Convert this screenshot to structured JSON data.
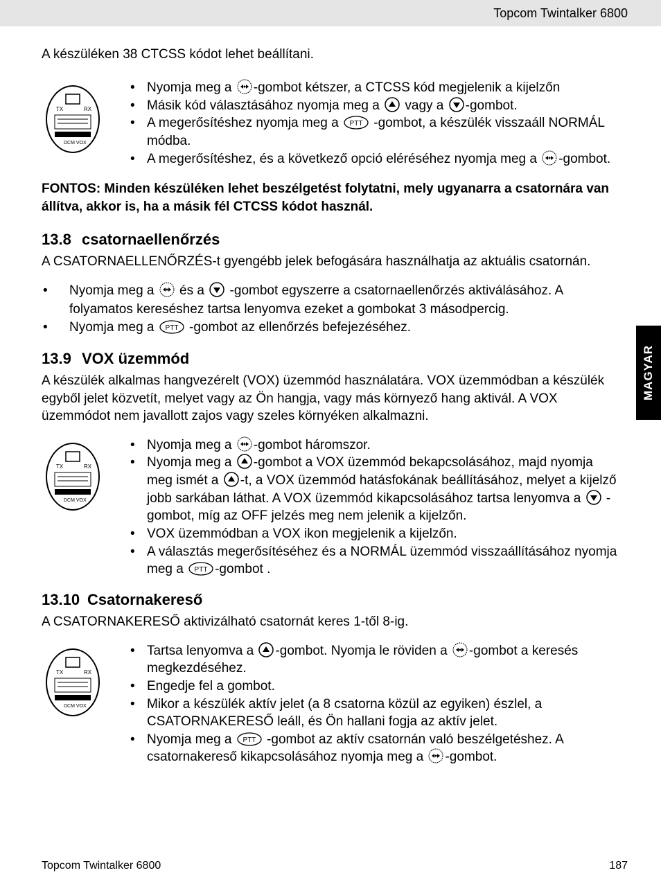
{
  "header": {
    "product_name": "Topcom Twintalker 6800"
  },
  "side_tab": {
    "language": "MAGYAR"
  },
  "intro": "A készüléken 38 CTCSS kódot lehet beállítani.",
  "ctcss_bullets": [
    "Nyomja meg a {MENU}-gombot kétszer, a CTCSS kód megjelenik a kijelzőn",
    "Másik kód választásához nyomja meg a {UP} vagy a {DOWN}-gombot.",
    "A megerősítéshez nyomja meg a {PTT} -gombot, a készülék visszaáll NORMÁL módba.",
    "A megerősítéshez, és a következő opció eléréséhez nyomja meg a {MENU}-gombot."
  ],
  "important": "FONTOS: Minden készüléken lehet beszélgetést folytatni, mely ugyanarra a csatornára van állítva, akkor is, ha a másik fél CTCSS kódot használ.",
  "s138": {
    "num": "13.8",
    "title": "csatornaellenőrzés",
    "para": "A CSATORNAELLENŐRZÉS-t gyengébb jelek befogására használhatja az aktuális csatornán.",
    "bullets": [
      "Nyomja meg a {MENU} és a {DOWN} -gombot egyszerre a csatornaellenőrzés aktiválásához. A folyamatos kereséshez tartsa lenyomva ezeket a gombokat 3 másodpercig.",
      "Nyomja meg a {PTT} -gombot az ellenőrzés befejezéséhez."
    ]
  },
  "s139": {
    "num": "13.9",
    "title": "VOX üzemmód",
    "para": "A készülék alkalmas hangvezérelt (VOX) üzemmód használatára. VOX üzemmódban a készülék egyből jelet közvetít, melyet vagy az Ön hangja, vagy más környező hang aktivál. A VOX üzemmódot nem javallott zajos vagy szeles környéken alkalmazni.",
    "bullets": [
      "Nyomja meg a {MENU}-gombot háromszor.",
      "Nyomja meg a {UP}-gombot a VOX üzemmód bekapcsolásához, majd nyomja meg ismét a {UP}-t, a VOX üzemmód hatásfokának beállításához, melyet a kijelző jobb sarkában láthat. A VOX üzemmód kikapcsolásához tartsa lenyomva a {DOWN} -gombot, míg az OFF jelzés meg nem jelenik a kijelzőn.",
      "VOX üzemmódban a VOX ikon megjelenik a kijelzőn.",
      "A választás megerősítéséhez és a NORMÁL üzemmód visszaállításához nyomja meg  a {PTT}-gombot ."
    ]
  },
  "s1310": {
    "num": "13.10",
    "title": "Csatornakereső",
    "para": "A CSATORNAKERESŐ aktivizálható csatornát keres 1-től 8-ig.",
    "bullets": [
      "Tartsa lenyomva a {UP}-gombot. Nyomja le röviden a {MENU}-gombot a keresés megkezdéséhez.",
      "Engedje fel a gombot.",
      "Mikor a készülék aktív jelet (a 8 csatorna közül az egyiken) észlel, a CSATORNAKERESŐ leáll, és Ön hallani fogja az aktív jelet.",
      "Nyomja meg a {PTT} -gombot az aktív csatornán való beszélgetéshez. A csatornakereső kikapcsolásához nyomja meg a {MENU}-gombot."
    ]
  },
  "footer": {
    "product_name": "Topcom Twintalker 6800",
    "page_number": "187"
  }
}
